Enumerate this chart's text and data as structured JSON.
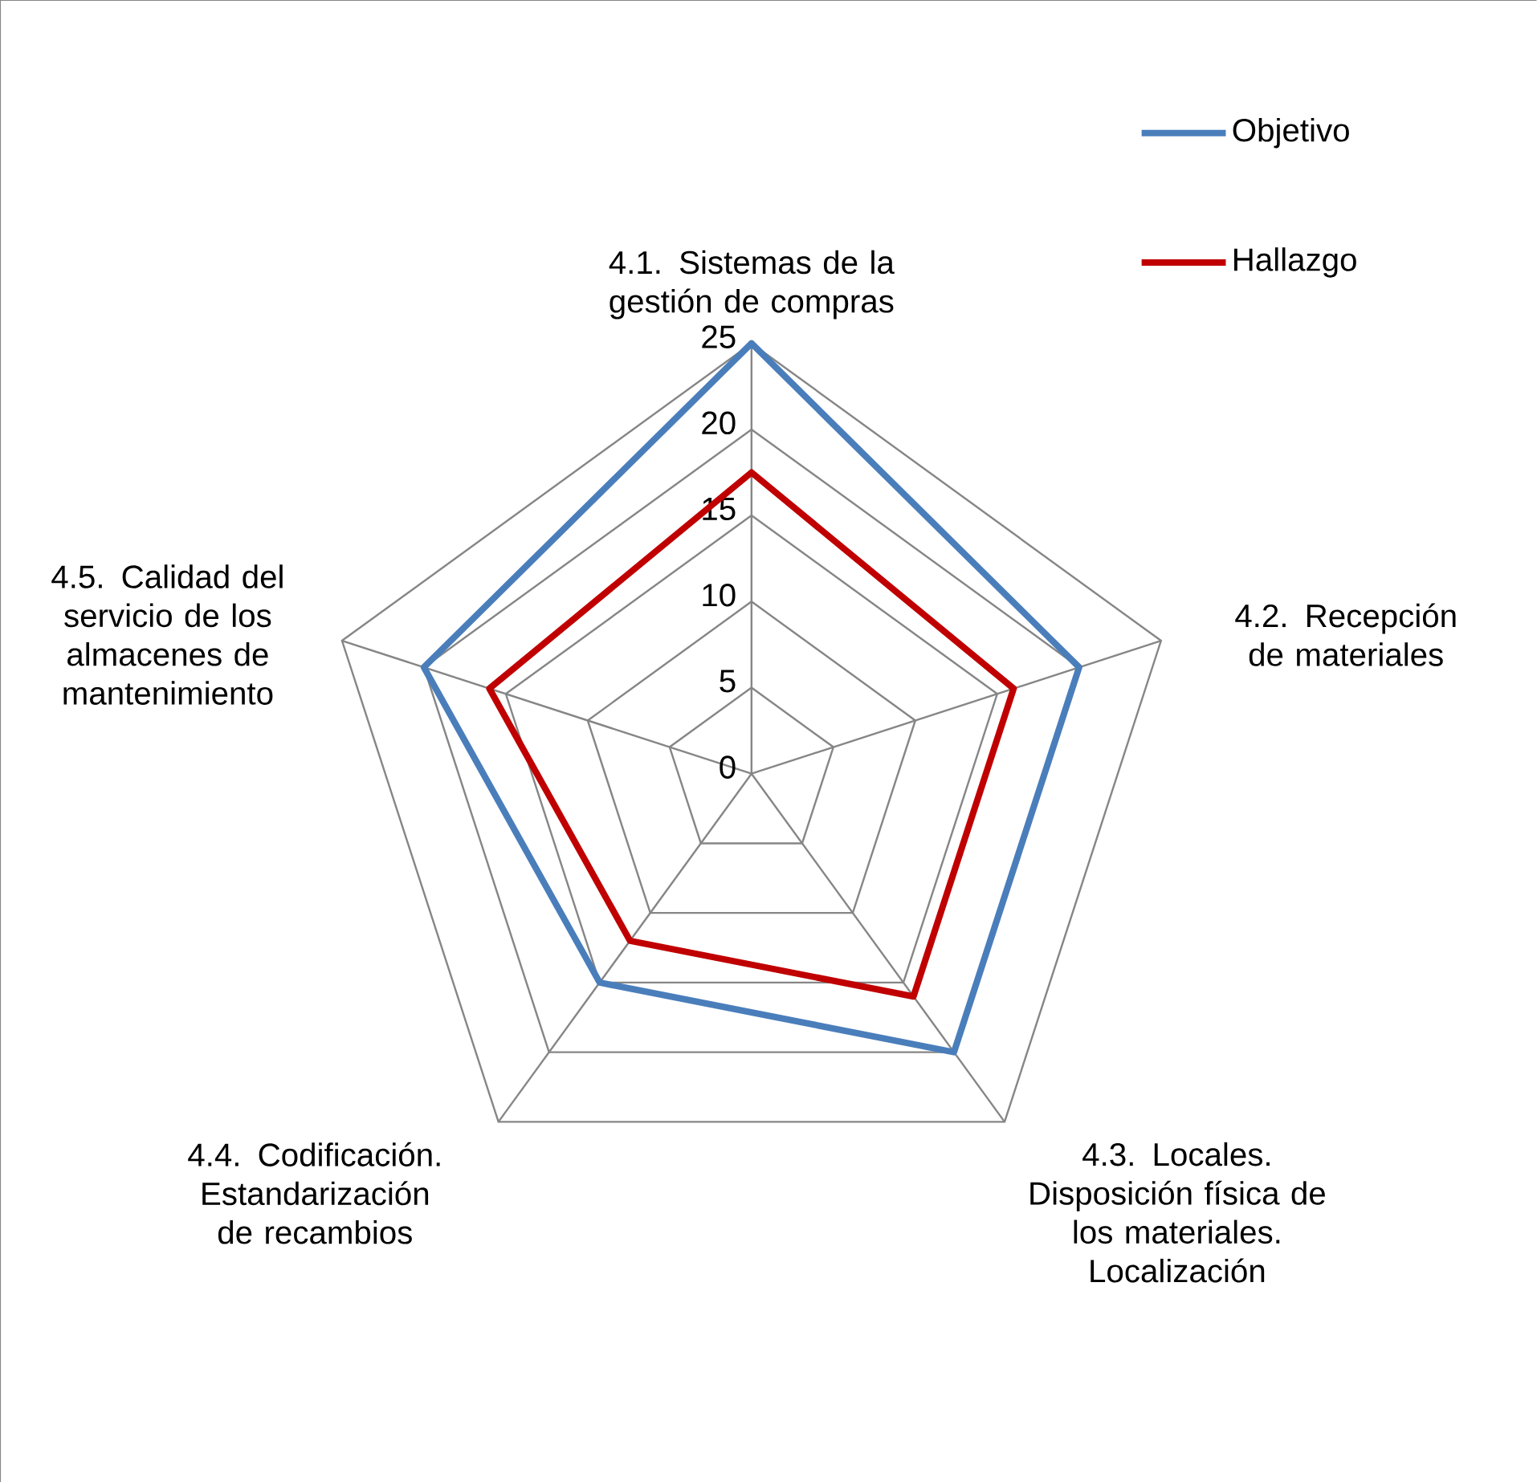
{
  "chart_data": {
    "type": "radar",
    "categories": [
      "4.1. Sistemas de la gestión de compras",
      "4.2. Recepción de materiales",
      "4.3. Locales. Disposición física de los materiales. Localización",
      "4.4. Codificación. Estandarización de recambios",
      "4.5. Calidad del servicio de los almacenes de mantenimiento"
    ],
    "series": [
      {
        "name": "Objetivo",
        "color": "#4a7ebb",
        "values": [
          25,
          20,
          20,
          15,
          20
        ]
      },
      {
        "name": "Hallazgo",
        "color": "#c00000",
        "values": [
          17.5,
          16,
          16,
          12,
          16
        ]
      }
    ],
    "ylim": [
      0,
      25
    ],
    "yticks": [
      0,
      5,
      10,
      15,
      20,
      25
    ],
    "grid": true,
    "legend": "top right",
    "marker": "none",
    "line_style": "solid"
  }
}
